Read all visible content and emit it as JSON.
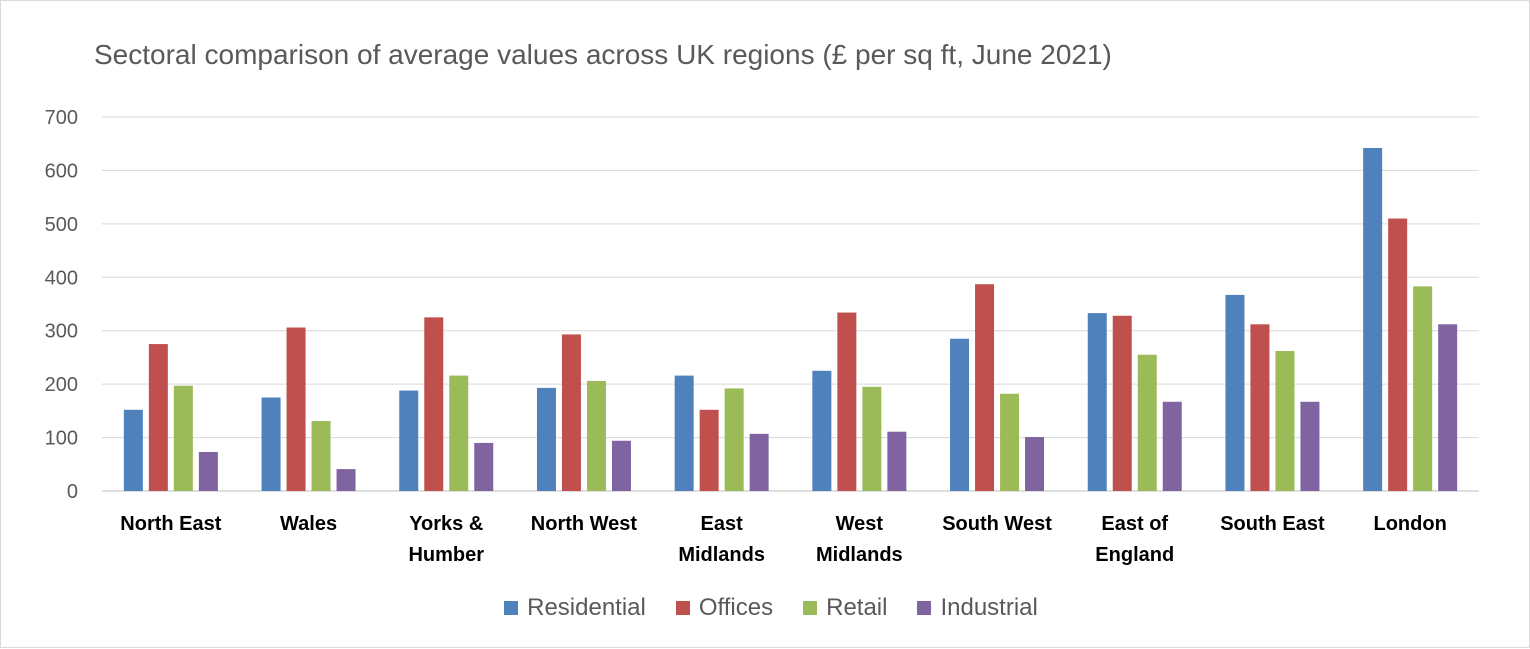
{
  "chart_data": {
    "type": "bar",
    "title": "Sectoral comparison of average values across UK regions (£ per sq ft, June 2021)",
    "categories": [
      [
        "North East"
      ],
      [
        "Wales"
      ],
      [
        "Yorks &",
        "Humber"
      ],
      [
        "North West"
      ],
      [
        "East",
        "Midlands"
      ],
      [
        "West",
        "Midlands"
      ],
      [
        "South West"
      ],
      [
        "East of",
        "England"
      ],
      [
        "South East"
      ],
      [
        "London"
      ]
    ],
    "series": [
      {
        "name": "Residential",
        "color": "#4f81bd",
        "values": [
          152,
          175,
          188,
          193,
          216,
          225,
          285,
          333,
          367,
          642
        ]
      },
      {
        "name": "Offices",
        "color": "#c0504d",
        "values": [
          275,
          306,
          325,
          293,
          152,
          334,
          387,
          328,
          312,
          510
        ]
      },
      {
        "name": "Retail",
        "color": "#9bbb59",
        "values": [
          197,
          131,
          216,
          206,
          192,
          195,
          182,
          255,
          262,
          383
        ]
      },
      {
        "name": "Industrial",
        "color": "#8064a2",
        "values": [
          73,
          41,
          90,
          94,
          107,
          111,
          101,
          167,
          167,
          312
        ]
      }
    ],
    "ylim": [
      0,
      700
    ],
    "yticks": [
      0,
      100,
      200,
      300,
      400,
      500,
      600,
      700
    ],
    "grid": true,
    "legend_position": "bottom"
  }
}
